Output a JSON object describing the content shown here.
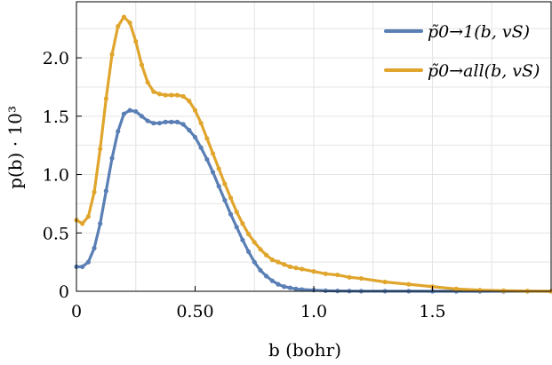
{
  "chart_data": {
    "type": "line",
    "xlabel": "b (bohr)",
    "ylabel": "p(b) · 10³",
    "xlim": [
      0,
      2.0
    ],
    "ylim": [
      0,
      2.48
    ],
    "grid": true,
    "legend_placement": "top-right",
    "x_ticks": [
      {
        "value": 0,
        "label": "0"
      },
      {
        "value": 0.5,
        "label": "0.50"
      },
      {
        "value": 1.0,
        "label": "1.0"
      },
      {
        "value": 1.5,
        "label": "1.5"
      }
    ],
    "y_ticks": [
      {
        "value": 0,
        "label": "0"
      },
      {
        "value": 0.5,
        "label": "0.5"
      },
      {
        "value": 1.0,
        "label": "1.0"
      },
      {
        "value": 1.5,
        "label": "1.5"
      },
      {
        "value": 2.0,
        "label": "2.0"
      }
    ],
    "series": [
      {
        "name": "p̃0→1(b, vS)",
        "color": "#5a7fb5",
        "x": [
          0,
          0.025,
          0.05,
          0.075,
          0.1,
          0.125,
          0.15,
          0.175,
          0.2,
          0.225,
          0.25,
          0.275,
          0.3,
          0.325,
          0.35,
          0.375,
          0.4,
          0.425,
          0.45,
          0.475,
          0.5,
          0.525,
          0.55,
          0.575,
          0.6,
          0.625,
          0.65,
          0.675,
          0.7,
          0.725,
          0.75,
          0.775,
          0.8,
          0.825,
          0.85,
          0.875,
          0.9,
          0.925,
          0.95,
          1.0,
          1.05,
          1.1,
          1.15,
          1.2,
          1.3,
          1.4,
          1.5,
          1.6,
          1.7,
          1.8,
          1.9,
          2.0
        ],
        "y": [
          0.21,
          0.21,
          0.25,
          0.37,
          0.58,
          0.86,
          1.14,
          1.37,
          1.52,
          1.55,
          1.54,
          1.5,
          1.46,
          1.44,
          1.44,
          1.45,
          1.45,
          1.45,
          1.43,
          1.38,
          1.32,
          1.23,
          1.13,
          1.02,
          0.9,
          0.78,
          0.66,
          0.55,
          0.44,
          0.34,
          0.25,
          0.18,
          0.13,
          0.09,
          0.06,
          0.04,
          0.03,
          0.02,
          0.015,
          0.01,
          0.005,
          0.003,
          0.002,
          0.001,
          0.001,
          0.001,
          0.0,
          0.0,
          0.0,
          0.0,
          0.0,
          0.0
        ]
      },
      {
        "name": "p̃0→all(b, vS)",
        "color": "#e0a52c",
        "x": [
          0,
          0.025,
          0.05,
          0.075,
          0.1,
          0.125,
          0.15,
          0.175,
          0.2,
          0.225,
          0.25,
          0.275,
          0.3,
          0.325,
          0.35,
          0.375,
          0.4,
          0.425,
          0.45,
          0.475,
          0.5,
          0.525,
          0.55,
          0.575,
          0.6,
          0.625,
          0.65,
          0.675,
          0.7,
          0.725,
          0.75,
          0.775,
          0.8,
          0.825,
          0.85,
          0.875,
          0.9,
          0.925,
          0.95,
          1.0,
          1.05,
          1.1,
          1.15,
          1.2,
          1.3,
          1.4,
          1.5,
          1.6,
          1.7,
          1.8,
          1.9,
          2.0
        ],
        "y": [
          0.61,
          0.58,
          0.64,
          0.85,
          1.22,
          1.65,
          2.03,
          2.27,
          2.35,
          2.3,
          2.14,
          1.94,
          1.79,
          1.71,
          1.69,
          1.68,
          1.68,
          1.68,
          1.67,
          1.63,
          1.55,
          1.44,
          1.31,
          1.18,
          1.05,
          0.92,
          0.8,
          0.68,
          0.58,
          0.49,
          0.42,
          0.36,
          0.31,
          0.27,
          0.25,
          0.23,
          0.21,
          0.2,
          0.19,
          0.17,
          0.15,
          0.14,
          0.12,
          0.11,
          0.08,
          0.06,
          0.04,
          0.02,
          0.01,
          0.005,
          0.002,
          0.0
        ]
      }
    ]
  }
}
